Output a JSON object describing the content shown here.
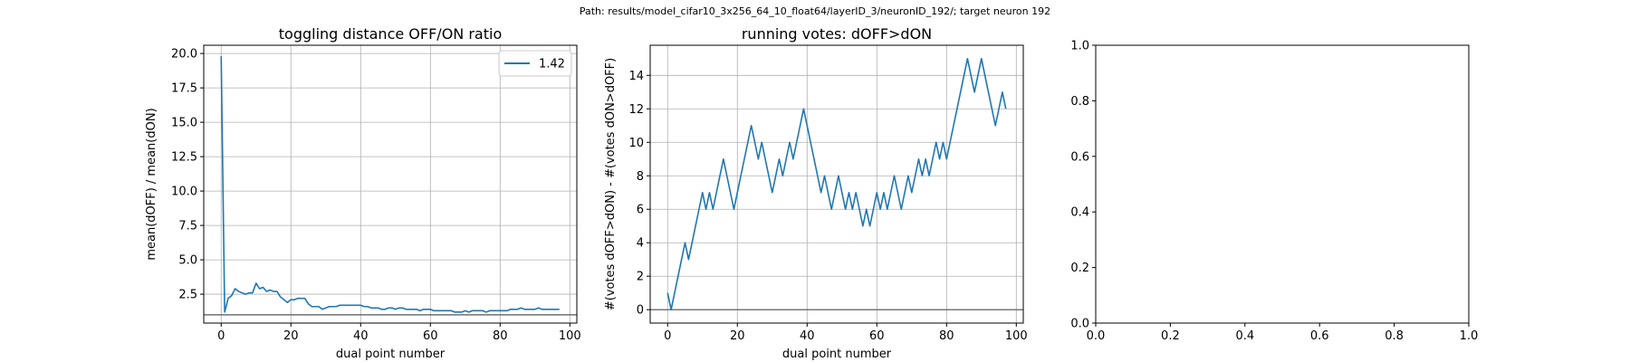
{
  "suptitle": "Path: results/model_cifar10_3x256_64_10_float64/layerID_3/neuronID_192/; target neuron 192",
  "chart_data": [
    {
      "type": "line",
      "title": "toggling distance OFF/ON ratio",
      "xlabel": "dual point number",
      "ylabel": "mean(dOFF) / mean(dON)",
      "xlim": [
        -5,
        102
      ],
      "ylim": [
        0.4,
        20.6
      ],
      "xticks": [
        0,
        20,
        40,
        60,
        80,
        100
      ],
      "xtick_labels": [
        "0",
        "20",
        "40",
        "60",
        "80",
        "100"
      ],
      "yticks": [
        2.5,
        5.0,
        7.5,
        10.0,
        12.5,
        15.0,
        17.5,
        20.0
      ],
      "ytick_labels": [
        "2.5",
        "5.0",
        "7.5",
        "10.0",
        "12.5",
        "15.0",
        "17.5",
        "20.0"
      ],
      "grid": true,
      "legend_position": "upper right",
      "hline": 1.0,
      "series": [
        {
          "name": "1.42",
          "color": "#1f77b4",
          "x": [
            0,
            1,
            2,
            3,
            4,
            5,
            6,
            7,
            8,
            9,
            10,
            11,
            12,
            13,
            14,
            15,
            16,
            17,
            18,
            19,
            20,
            21,
            22,
            23,
            24,
            25,
            26,
            27,
            28,
            29,
            30,
            31,
            32,
            33,
            34,
            35,
            36,
            37,
            38,
            39,
            40,
            41,
            42,
            43,
            44,
            45,
            46,
            47,
            48,
            49,
            50,
            51,
            52,
            53,
            54,
            55,
            56,
            57,
            58,
            59,
            60,
            61,
            62,
            63,
            64,
            65,
            66,
            67,
            68,
            69,
            70,
            71,
            72,
            73,
            74,
            75,
            76,
            77,
            78,
            79,
            80,
            81,
            82,
            83,
            84,
            85,
            86,
            87,
            88,
            89,
            90,
            91,
            92,
            93,
            94,
            95,
            96,
            97
          ],
          "y": [
            19.8,
            1.2,
            2.2,
            2.4,
            2.9,
            2.7,
            2.6,
            2.5,
            2.6,
            2.6,
            3.3,
            2.9,
            3.0,
            2.7,
            2.8,
            2.7,
            2.7,
            2.3,
            2.1,
            1.9,
            2.1,
            2.1,
            2.2,
            2.2,
            2.2,
            1.8,
            1.6,
            1.6,
            1.6,
            1.4,
            1.5,
            1.6,
            1.6,
            1.6,
            1.7,
            1.7,
            1.7,
            1.7,
            1.7,
            1.7,
            1.7,
            1.6,
            1.6,
            1.5,
            1.5,
            1.5,
            1.4,
            1.4,
            1.5,
            1.5,
            1.4,
            1.5,
            1.5,
            1.4,
            1.4,
            1.4,
            1.4,
            1.3,
            1.4,
            1.4,
            1.4,
            1.3,
            1.3,
            1.3,
            1.3,
            1.3,
            1.3,
            1.2,
            1.2,
            1.2,
            1.3,
            1.2,
            1.3,
            1.3,
            1.3,
            1.3,
            1.2,
            1.3,
            1.3,
            1.3,
            1.3,
            1.3,
            1.3,
            1.4,
            1.4,
            1.4,
            1.5,
            1.4,
            1.4,
            1.4,
            1.4,
            1.5,
            1.4,
            1.4,
            1.4,
            1.4,
            1.4,
            1.4
          ]
        }
      ]
    },
    {
      "type": "line",
      "title": "running votes: dOFF>dON",
      "xlabel": "dual point number",
      "ylabel": "#(votes dOFF>dON) - #(votes dON>dOFF)",
      "xlim": [
        -5,
        102
      ],
      "ylim": [
        -0.8,
        15.8
      ],
      "xticks": [
        0,
        20,
        40,
        60,
        80,
        100
      ],
      "xtick_labels": [
        "0",
        "20",
        "40",
        "60",
        "80",
        "100"
      ],
      "yticks": [
        0,
        2,
        4,
        6,
        8,
        10,
        12,
        14
      ],
      "ytick_labels": [
        "0",
        "2",
        "4",
        "6",
        "8",
        "10",
        "12",
        "14"
      ],
      "grid": true,
      "hline": 0,
      "series": [
        {
          "color": "#1f77b4",
          "x": [
            0,
            1,
            2,
            3,
            4,
            5,
            6,
            7,
            8,
            9,
            10,
            11,
            12,
            13,
            14,
            15,
            16,
            17,
            18,
            19,
            20,
            21,
            22,
            23,
            24,
            25,
            26,
            27,
            28,
            29,
            30,
            31,
            32,
            33,
            34,
            35,
            36,
            37,
            38,
            39,
            40,
            41,
            42,
            43,
            44,
            45,
            46,
            47,
            48,
            49,
            50,
            51,
            52,
            53,
            54,
            55,
            56,
            57,
            58,
            59,
            60,
            61,
            62,
            63,
            64,
            65,
            66,
            67,
            68,
            69,
            70,
            71,
            72,
            73,
            74,
            75,
            76,
            77,
            78,
            79,
            80,
            81,
            82,
            83,
            84,
            85,
            86,
            87,
            88,
            89,
            90,
            91,
            92,
            93,
            94,
            95,
            96,
            97
          ],
          "y": [
            1,
            0,
            1,
            2,
            3,
            4,
            3,
            4,
            5,
            6,
            7,
            6,
            7,
            6,
            7,
            8,
            9,
            8,
            7,
            6,
            7,
            8,
            9,
            10,
            11,
            10,
            9,
            10,
            9,
            8,
            7,
            8,
            9,
            8,
            9,
            10,
            9,
            10,
            11,
            12,
            11,
            10,
            9,
            8,
            7,
            8,
            7,
            6,
            7,
            8,
            7,
            6,
            7,
            6,
            7,
            6,
            5,
            6,
            5,
            6,
            7,
            6,
            7,
            6,
            7,
            8,
            7,
            6,
            7,
            8,
            7,
            8,
            9,
            8,
            9,
            8,
            9,
            10,
            9,
            10,
            9,
            10,
            11,
            12,
            13,
            14,
            15,
            14,
            13,
            14,
            15,
            14,
            13,
            12,
            11,
            12,
            13,
            12
          ]
        }
      ]
    },
    {
      "type": "line",
      "title": "",
      "xlabel": "",
      "ylabel": "",
      "xlim": [
        0,
        1
      ],
      "ylim": [
        0,
        1
      ],
      "xticks": [
        0,
        0.2,
        0.4,
        0.6,
        0.8,
        1.0
      ],
      "xtick_labels": [
        "0.0",
        "0.2",
        "0.4",
        "0.6",
        "0.8",
        "1.0"
      ],
      "yticks": [
        0,
        0.2,
        0.4,
        0.6,
        0.8,
        1.0
      ],
      "ytick_labels": [
        "0.0",
        "0.2",
        "0.4",
        "0.6",
        "0.8",
        "1.0"
      ],
      "grid": false,
      "series": []
    }
  ]
}
